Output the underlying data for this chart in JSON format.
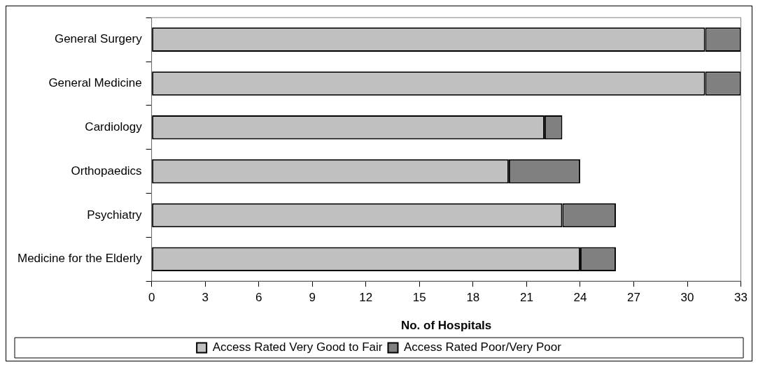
{
  "chart_data": {
    "type": "bar",
    "orientation": "horizontal",
    "stacked": true,
    "xlabel": "No. of Hospitals",
    "categories": [
      "General Surgery",
      "General Medicine",
      "Cardiology",
      "Orthopaedics",
      "Psychiatry",
      "Medicine for the Elderly"
    ],
    "series": [
      {
        "name": "Access Rated Very Good to Fair",
        "color": "#c0c0c0",
        "values": [
          31,
          31,
          22,
          20,
          23,
          24
        ]
      },
      {
        "name": "Access Rated Poor/Very Poor",
        "color": "#808080",
        "values": [
          2,
          2,
          1,
          4,
          3,
          2
        ]
      }
    ],
    "xlim": [
      0,
      33
    ],
    "xticks": [
      0,
      3,
      6,
      9,
      12,
      15,
      18,
      21,
      24,
      27,
      30,
      33
    ],
    "grid": false,
    "legend": "bottom"
  }
}
